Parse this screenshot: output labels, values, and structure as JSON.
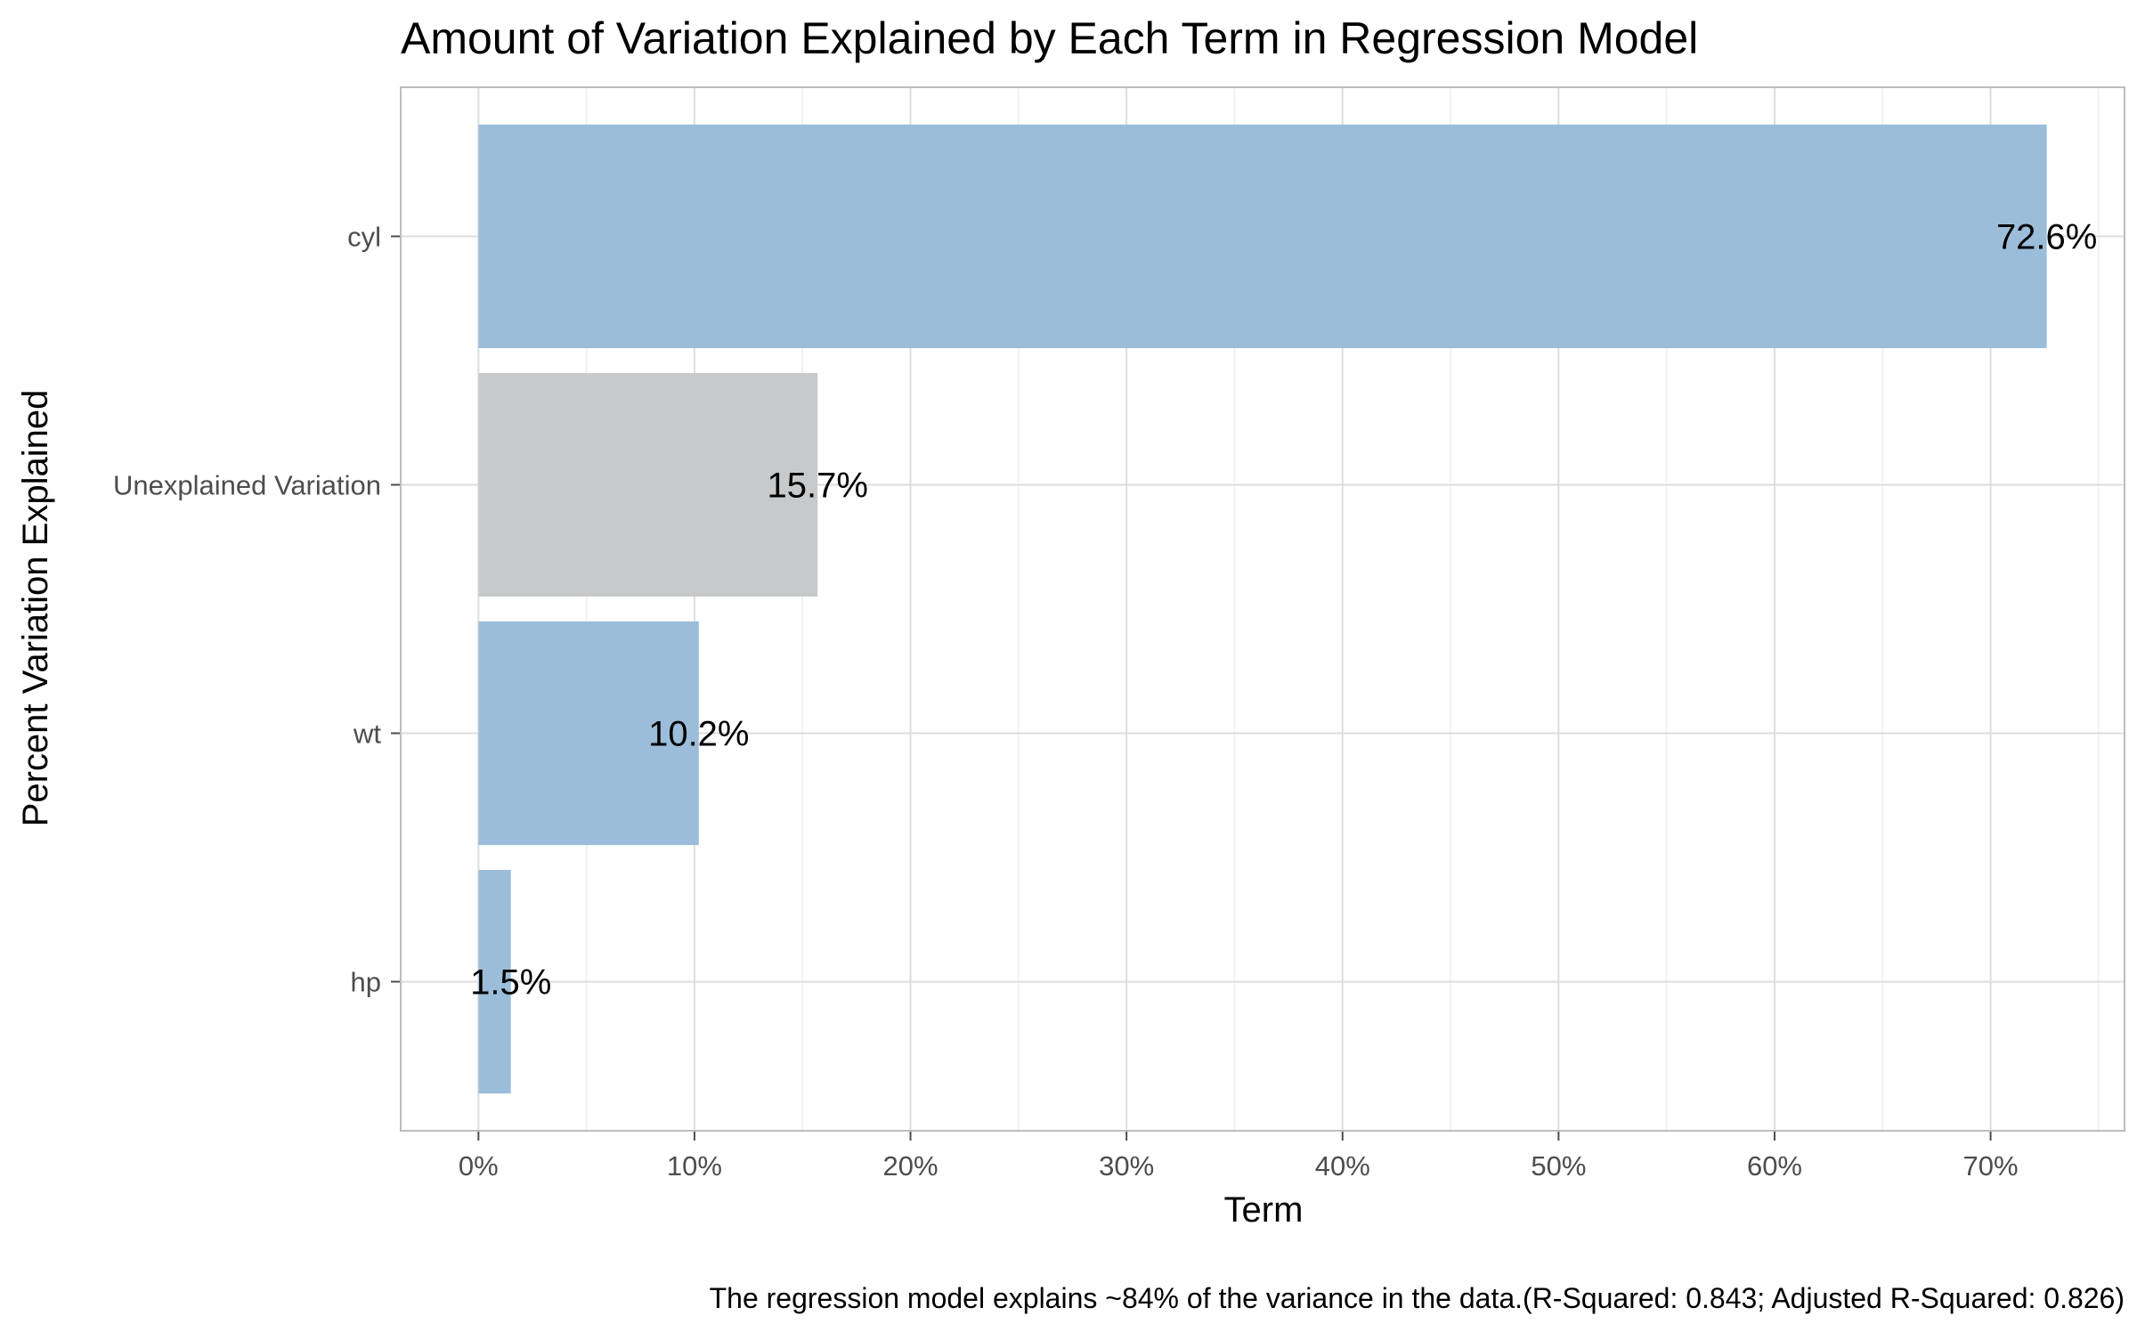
{
  "chart_data": {
    "type": "bar",
    "orientation": "horizontal",
    "title": "Amount of Variation Explained by Each Term in Regression Model",
    "xlabel": "Term",
    "ylabel": "Percent Variation Explained",
    "caption": "The regression model explains ~84% of the variance in the data.(R-Squared: 0.843; Adjusted R-Squared: 0.826)",
    "categories": [
      "cyl",
      "Unexplained Variation",
      "wt",
      "hp"
    ],
    "values": [
      72.6,
      15.7,
      10.2,
      1.5
    ],
    "data_labels": [
      "72.6%",
      "15.7%",
      "10.2%",
      "1.5%"
    ],
    "bar_colors": [
      "#9bbdda",
      "#c8c9ca",
      "#9bbdda",
      "#9bbdda"
    ],
    "xlim": [
      -3.6,
      76.2
    ],
    "x_ticks": [
      0,
      10,
      20,
      30,
      40,
      50,
      60,
      70
    ],
    "x_tick_labels": [
      "0%",
      "10%",
      "20%",
      "30%",
      "40%",
      "50%",
      "60%",
      "70%"
    ],
    "grid": true,
    "legend": "none",
    "theme": "light",
    "colors": {
      "grid_major": "#dedede",
      "grid_minor": "#efefef",
      "panel_border": "#bdbdbd",
      "axis_text": "#4d4d4d",
      "text": "#000000"
    }
  }
}
